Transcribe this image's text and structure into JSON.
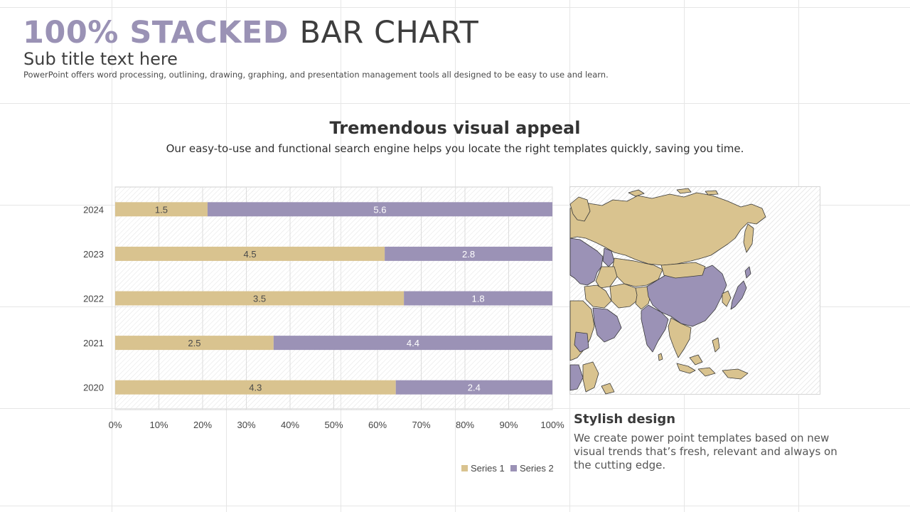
{
  "header": {
    "title_accent": "100% STACKED",
    "title_rest": "BAR CHART",
    "subtitle": "Sub title text here",
    "description": "PowerPoint offers word processing, outlining, drawing, graphing, and presentation management tools all designed to be easy to use and learn."
  },
  "section": {
    "heading": "Tremendous visual appeal",
    "subheading": "Our easy-to-use and functional search engine helps you locate the right templates quickly, saving you time."
  },
  "card": {
    "title": "Stylish design",
    "text": "We create power point templates based on new visual trends that’s fresh, relevant and always on the cutting edge."
  },
  "map": {
    "icon": "asia-map-icon"
  },
  "colors": {
    "series1": "#d9c38f",
    "series2": "#9b92b6",
    "accent": "#9a92b5"
  },
  "chart_data": {
    "type": "bar",
    "orientation": "horizontal",
    "stacking": "percent",
    "categories": [
      "2024",
      "2023",
      "2022",
      "2021",
      "2020"
    ],
    "series": [
      {
        "name": "Series 1",
        "values": [
          1.5,
          4.5,
          3.5,
          2.5,
          4.3
        ]
      },
      {
        "name": "Series 2",
        "values": [
          5.6,
          2.8,
          1.8,
          4.4,
          2.4
        ]
      }
    ],
    "x_ticks": [
      "0%",
      "10%",
      "20%",
      "30%",
      "40%",
      "50%",
      "60%",
      "70%",
      "80%",
      "90%",
      "100%"
    ],
    "xlim": [
      0,
      100
    ],
    "data_labels": true,
    "grid": true,
    "legend": "bottom-right"
  }
}
